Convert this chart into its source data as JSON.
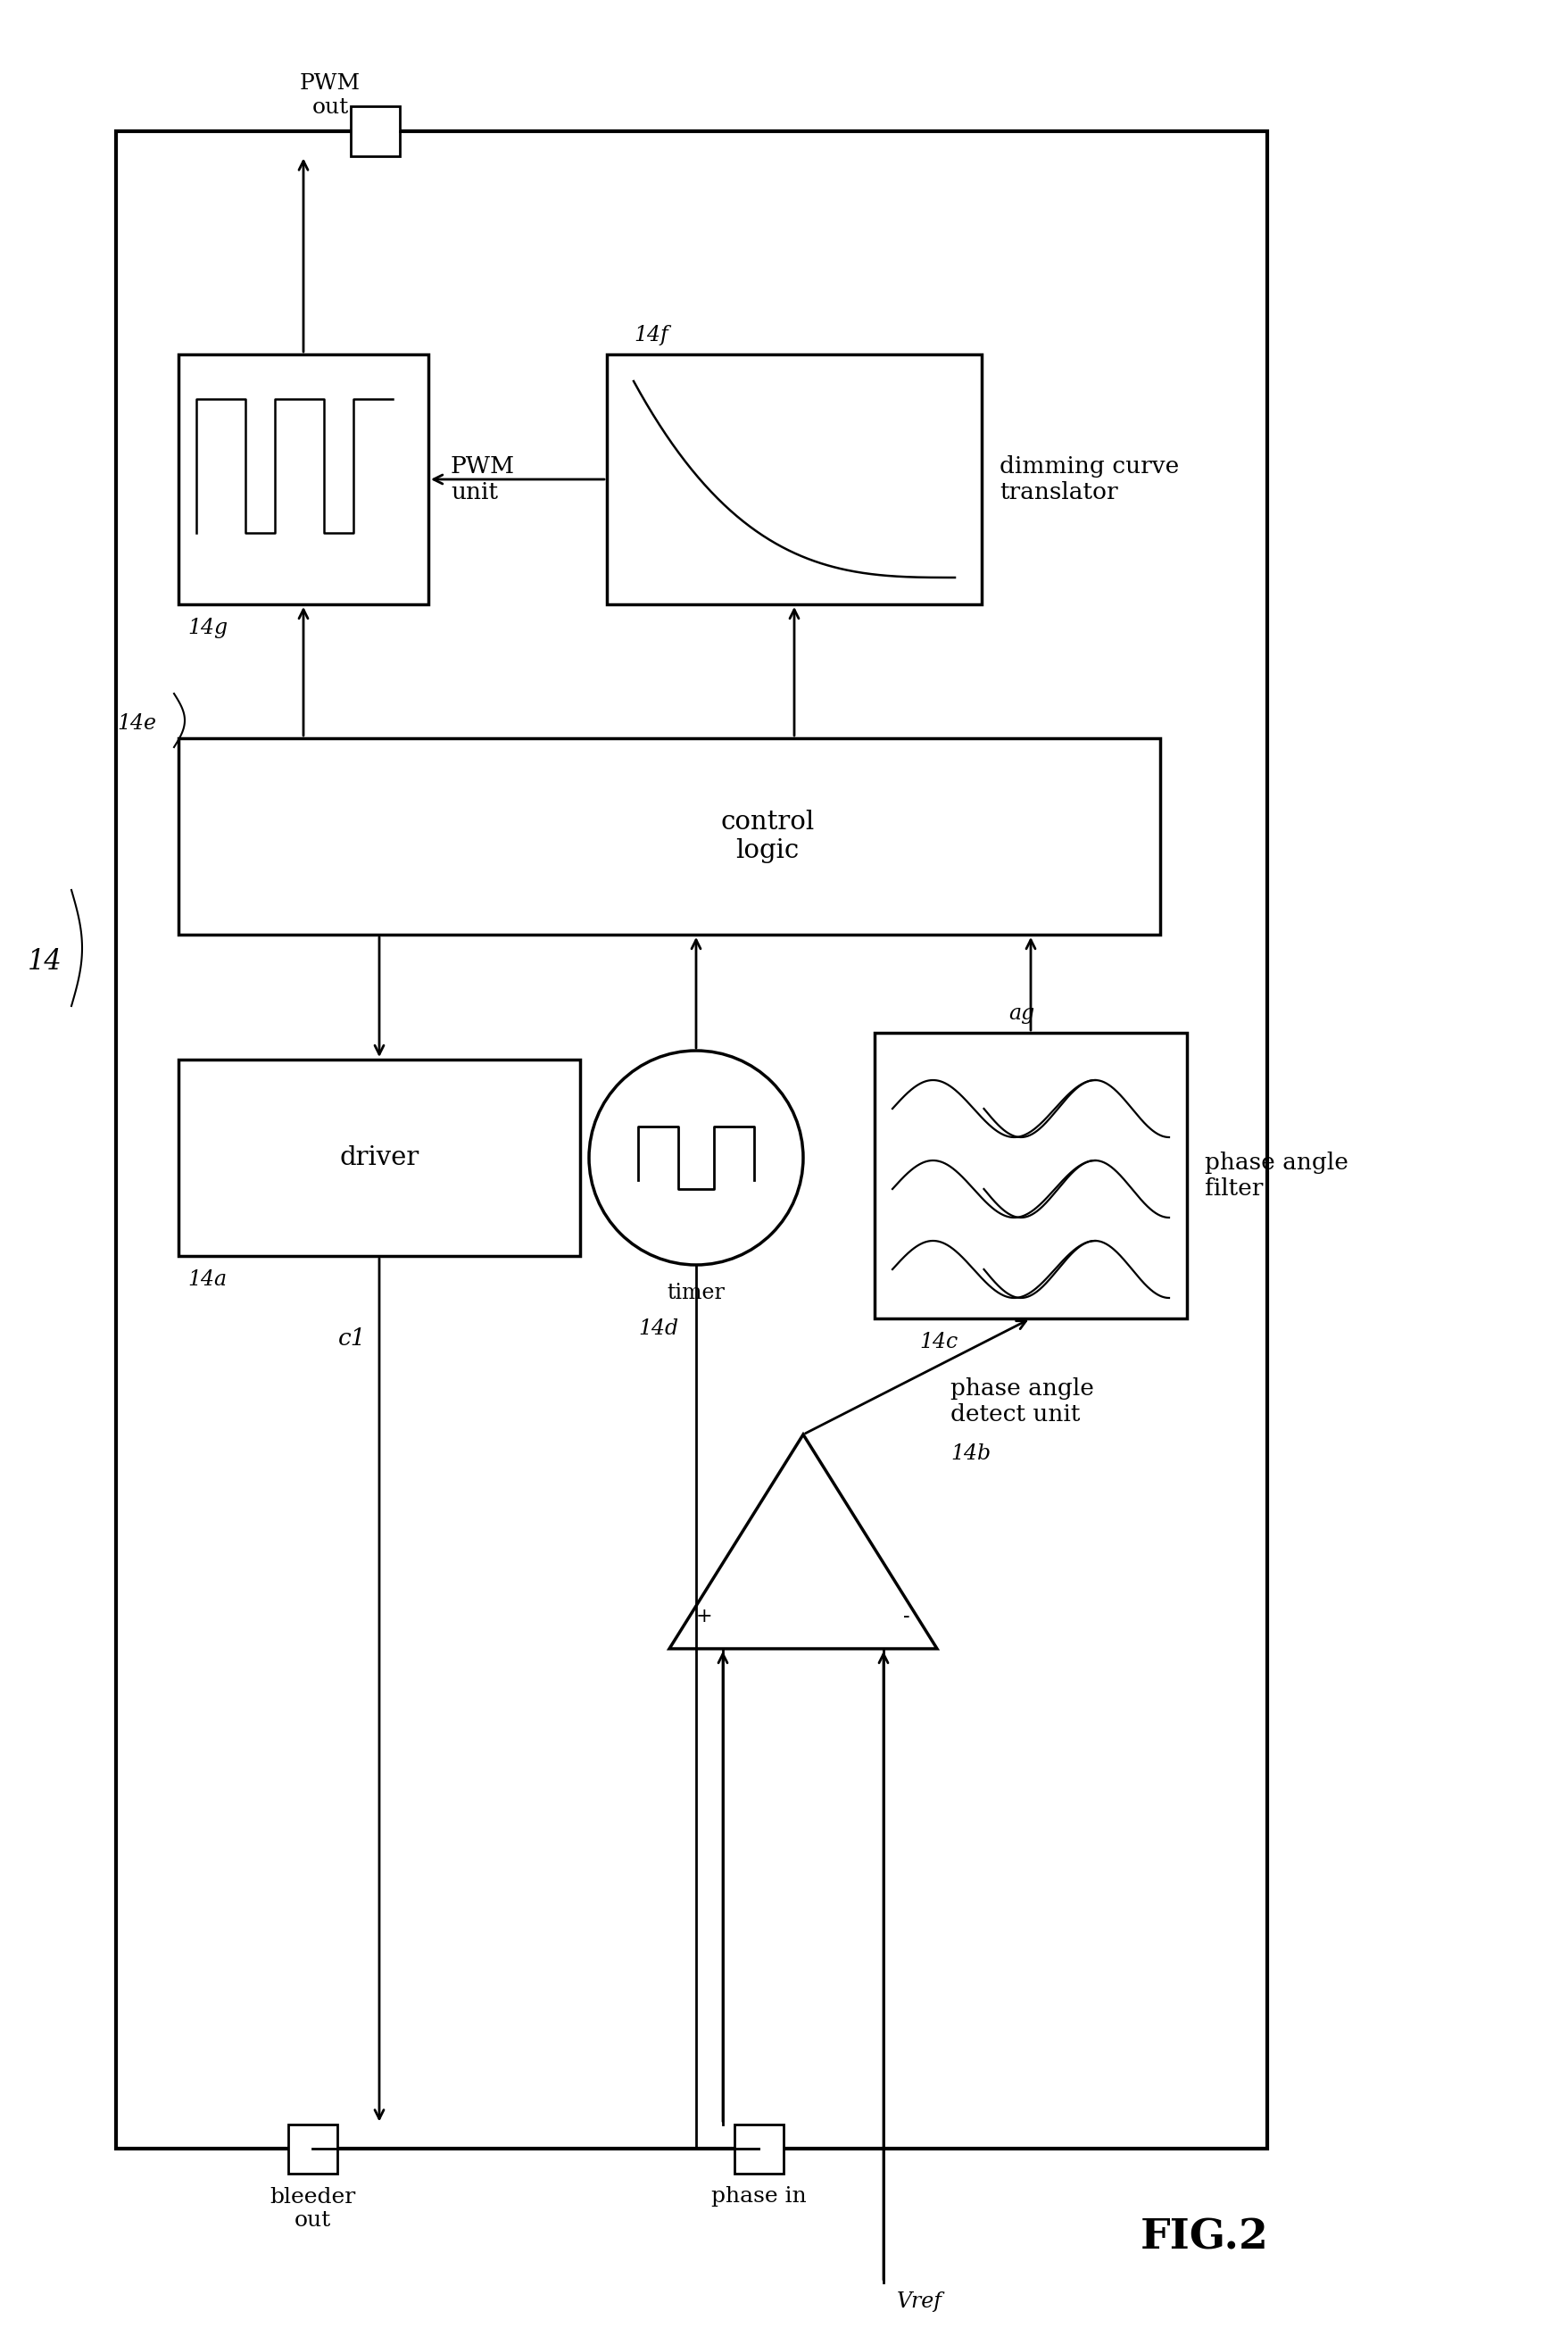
{
  "bg_color": "#ffffff",
  "fig_title": "FIG.2",
  "label_14": "14",
  "label_14a": "14a",
  "label_14b": "14b",
  "label_14c": "14c",
  "label_14d": "14d",
  "label_14e": "14e",
  "label_14f": "14f",
  "label_14g": "14g",
  "label_ag": "ag",
  "label_c1": "c1",
  "text_driver": "driver",
  "text_control_logic": "control\nlogic",
  "text_pwm_unit": "PWM\nunit",
  "text_dimming_curve_translator": "dimming curve\ntranslator",
  "text_phase_angle_filter": "phase angle\nfilter",
  "text_phase_angle_detect_unit": "phase angle\ndetect unit",
  "text_timer": "timer",
  "text_pwm_out": "PWM\nout",
  "text_bleeder_out": "bleeder\nout",
  "text_phase_in": "phase in",
  "text_vref": "Vref"
}
